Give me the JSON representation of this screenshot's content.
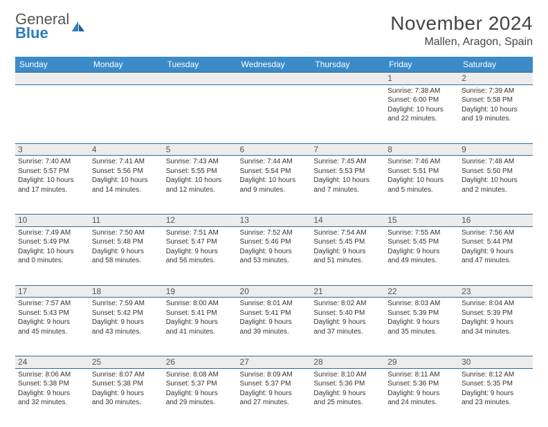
{
  "logo": {
    "text1": "General",
    "text2": "Blue"
  },
  "title": "November 2024",
  "location": "Mallen, Aragon, Spain",
  "colors": {
    "headerBg": "#3b8bc9",
    "rowDivider": "#2a6ca6",
    "grayStripe": "#ececec",
    "logoBlue": "#2f7bbf"
  },
  "dayHeaders": [
    "Sunday",
    "Monday",
    "Tuesday",
    "Wednesday",
    "Thursday",
    "Friday",
    "Saturday"
  ],
  "weeks": [
    [
      null,
      null,
      null,
      null,
      null,
      {
        "num": "1",
        "sunrise": "7:38 AM",
        "sunset": "6:00 PM",
        "dl1": "Daylight: 10 hours",
        "dl2": "and 22 minutes."
      },
      {
        "num": "2",
        "sunrise": "7:39 AM",
        "sunset": "5:58 PM",
        "dl1": "Daylight: 10 hours",
        "dl2": "and 19 minutes."
      }
    ],
    [
      {
        "num": "3",
        "sunrise": "7:40 AM",
        "sunset": "5:57 PM",
        "dl1": "Daylight: 10 hours",
        "dl2": "and 17 minutes."
      },
      {
        "num": "4",
        "sunrise": "7:41 AM",
        "sunset": "5:56 PM",
        "dl1": "Daylight: 10 hours",
        "dl2": "and 14 minutes."
      },
      {
        "num": "5",
        "sunrise": "7:43 AM",
        "sunset": "5:55 PM",
        "dl1": "Daylight: 10 hours",
        "dl2": "and 12 minutes."
      },
      {
        "num": "6",
        "sunrise": "7:44 AM",
        "sunset": "5:54 PM",
        "dl1": "Daylight: 10 hours",
        "dl2": "and 9 minutes."
      },
      {
        "num": "7",
        "sunrise": "7:45 AM",
        "sunset": "5:53 PM",
        "dl1": "Daylight: 10 hours",
        "dl2": "and 7 minutes."
      },
      {
        "num": "8",
        "sunrise": "7:46 AM",
        "sunset": "5:51 PM",
        "dl1": "Daylight: 10 hours",
        "dl2": "and 5 minutes."
      },
      {
        "num": "9",
        "sunrise": "7:48 AM",
        "sunset": "5:50 PM",
        "dl1": "Daylight: 10 hours",
        "dl2": "and 2 minutes."
      }
    ],
    [
      {
        "num": "10",
        "sunrise": "7:49 AM",
        "sunset": "5:49 PM",
        "dl1": "Daylight: 10 hours",
        "dl2": "and 0 minutes."
      },
      {
        "num": "11",
        "sunrise": "7:50 AM",
        "sunset": "5:48 PM",
        "dl1": "Daylight: 9 hours",
        "dl2": "and 58 minutes."
      },
      {
        "num": "12",
        "sunrise": "7:51 AM",
        "sunset": "5:47 PM",
        "dl1": "Daylight: 9 hours",
        "dl2": "and 56 minutes."
      },
      {
        "num": "13",
        "sunrise": "7:52 AM",
        "sunset": "5:46 PM",
        "dl1": "Daylight: 9 hours",
        "dl2": "and 53 minutes."
      },
      {
        "num": "14",
        "sunrise": "7:54 AM",
        "sunset": "5:45 PM",
        "dl1": "Daylight: 9 hours",
        "dl2": "and 51 minutes."
      },
      {
        "num": "15",
        "sunrise": "7:55 AM",
        "sunset": "5:45 PM",
        "dl1": "Daylight: 9 hours",
        "dl2": "and 49 minutes."
      },
      {
        "num": "16",
        "sunrise": "7:56 AM",
        "sunset": "5:44 PM",
        "dl1": "Daylight: 9 hours",
        "dl2": "and 47 minutes."
      }
    ],
    [
      {
        "num": "17",
        "sunrise": "7:57 AM",
        "sunset": "5:43 PM",
        "dl1": "Daylight: 9 hours",
        "dl2": "and 45 minutes."
      },
      {
        "num": "18",
        "sunrise": "7:59 AM",
        "sunset": "5:42 PM",
        "dl1": "Daylight: 9 hours",
        "dl2": "and 43 minutes."
      },
      {
        "num": "19",
        "sunrise": "8:00 AM",
        "sunset": "5:41 PM",
        "dl1": "Daylight: 9 hours",
        "dl2": "and 41 minutes."
      },
      {
        "num": "20",
        "sunrise": "8:01 AM",
        "sunset": "5:41 PM",
        "dl1": "Daylight: 9 hours",
        "dl2": "and 39 minutes."
      },
      {
        "num": "21",
        "sunrise": "8:02 AM",
        "sunset": "5:40 PM",
        "dl1": "Daylight: 9 hours",
        "dl2": "and 37 minutes."
      },
      {
        "num": "22",
        "sunrise": "8:03 AM",
        "sunset": "5:39 PM",
        "dl1": "Daylight: 9 hours",
        "dl2": "and 35 minutes."
      },
      {
        "num": "23",
        "sunrise": "8:04 AM",
        "sunset": "5:39 PM",
        "dl1": "Daylight: 9 hours",
        "dl2": "and 34 minutes."
      }
    ],
    [
      {
        "num": "24",
        "sunrise": "8:06 AM",
        "sunset": "5:38 PM",
        "dl1": "Daylight: 9 hours",
        "dl2": "and 32 minutes."
      },
      {
        "num": "25",
        "sunrise": "8:07 AM",
        "sunset": "5:38 PM",
        "dl1": "Daylight: 9 hours",
        "dl2": "and 30 minutes."
      },
      {
        "num": "26",
        "sunrise": "8:08 AM",
        "sunset": "5:37 PM",
        "dl1": "Daylight: 9 hours",
        "dl2": "and 29 minutes."
      },
      {
        "num": "27",
        "sunrise": "8:09 AM",
        "sunset": "5:37 PM",
        "dl1": "Daylight: 9 hours",
        "dl2": "and 27 minutes."
      },
      {
        "num": "28",
        "sunrise": "8:10 AM",
        "sunset": "5:36 PM",
        "dl1": "Daylight: 9 hours",
        "dl2": "and 25 minutes."
      },
      {
        "num": "29",
        "sunrise": "8:11 AM",
        "sunset": "5:36 PM",
        "dl1": "Daylight: 9 hours",
        "dl2": "and 24 minutes."
      },
      {
        "num": "30",
        "sunrise": "8:12 AM",
        "sunset": "5:35 PM",
        "dl1": "Daylight: 9 hours",
        "dl2": "and 23 minutes."
      }
    ]
  ]
}
